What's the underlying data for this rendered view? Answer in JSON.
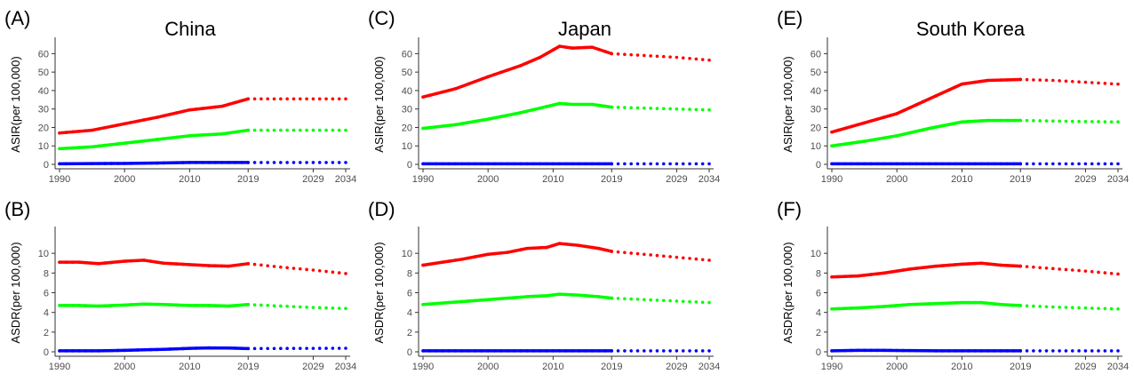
{
  "colors": {
    "red": "#ff0000",
    "green": "#00ff00",
    "blue": "#0000ff",
    "axis": "#333333",
    "tick_text": "#4d4d4d"
  },
  "x_ticks": [
    1990,
    2000,
    2010,
    2019,
    2029,
    2034
  ],
  "x_range": [
    1990,
    2034
  ],
  "observed_end": 2019,
  "chart_data": [
    {
      "type": "line",
      "panel": "(A)",
      "title": "China",
      "ylabel": "ASIR(per 100,000)",
      "ylim": [
        0,
        65
      ],
      "yticks": [
        0,
        10,
        20,
        30,
        40,
        50,
        60
      ],
      "x_observed": [
        1990,
        1995,
        2000,
        2005,
        2010,
        2015,
        2019
      ],
      "x_projected": [
        2019,
        2024,
        2029,
        2034
      ],
      "series": [
        {
          "color": "red",
          "observed": [
            17,
            18.5,
            22,
            25.5,
            29.5,
            31.5,
            35.5
          ],
          "projected": [
            35.5,
            35.5,
            35.5,
            35.5
          ]
        },
        {
          "color": "green",
          "observed": [
            8.5,
            9.5,
            11.5,
            13.5,
            15.5,
            16.5,
            18.5
          ],
          "projected": [
            18.5,
            18.5,
            18.5,
            18.5
          ]
        },
        {
          "color": "blue",
          "observed": [
            0.3,
            0.4,
            0.5,
            0.7,
            1.0,
            1.0,
            1.0
          ],
          "projected": [
            1.0,
            1.0,
            1.0,
            1.0
          ]
        }
      ]
    },
    {
      "type": "line",
      "panel": "(C)",
      "title": "Japan",
      "ylabel": "ASIR(per 100,000)",
      "ylim": [
        0,
        65
      ],
      "yticks": [
        0,
        10,
        20,
        30,
        40,
        50,
        60
      ],
      "x_observed": [
        1990,
        1995,
        2000,
        2005,
        2008,
        2011,
        2013,
        2016,
        2019
      ],
      "x_projected": [
        2019,
        2024,
        2029,
        2034
      ],
      "series": [
        {
          "color": "red",
          "observed": [
            36.5,
            41,
            47.5,
            53.5,
            58,
            64,
            63,
            63.5,
            60
          ],
          "projected": [
            60,
            59,
            58,
            56.5
          ]
        },
        {
          "color": "green",
          "observed": [
            19.5,
            21.5,
            24.5,
            28,
            30.5,
            33,
            32.5,
            32.5,
            31
          ],
          "projected": [
            31,
            30.5,
            30,
            29.5
          ]
        },
        {
          "color": "blue",
          "observed": [
            0.3,
            0.3,
            0.3,
            0.3,
            0.3,
            0.3,
            0.3,
            0.3,
            0.3
          ],
          "projected": [
            0.3,
            0.3,
            0.3,
            0.3
          ]
        }
      ]
    },
    {
      "type": "line",
      "panel": "(E)",
      "title": "South Korea",
      "ylabel": "ASIR(per 100,000)",
      "ylim": [
        0,
        65
      ],
      "yticks": [
        0,
        10,
        20,
        30,
        40,
        50,
        60
      ],
      "x_observed": [
        1990,
        1995,
        2000,
        2005,
        2010,
        2014,
        2019
      ],
      "x_projected": [
        2019,
        2024,
        2029,
        2034
      ],
      "series": [
        {
          "color": "red",
          "observed": [
            17.5,
            22.5,
            27.5,
            35.5,
            43.5,
            45.5,
            46
          ],
          "projected": [
            46,
            45.5,
            44.5,
            43.5
          ]
        },
        {
          "color": "green",
          "observed": [
            10,
            12.5,
            15.5,
            19.5,
            23,
            23.8,
            23.8
          ],
          "projected": [
            23.8,
            23.5,
            23.2,
            23
          ]
        },
        {
          "color": "blue",
          "observed": [
            0.3,
            0.3,
            0.3,
            0.3,
            0.3,
            0.3,
            0.3
          ],
          "projected": [
            0.3,
            0.3,
            0.3,
            0.3
          ]
        }
      ]
    },
    {
      "type": "line",
      "panel": "(B)",
      "title": "",
      "ylabel": "ASDR(per 100,000)",
      "ylim": [
        0,
        12
      ],
      "yticks": [
        0,
        2,
        4,
        6,
        8,
        10
      ],
      "x_observed": [
        1990,
        1993,
        1996,
        2000,
        2003,
        2006,
        2010,
        2013,
        2016,
        2019
      ],
      "x_projected": [
        2019,
        2024,
        2029,
        2034
      ],
      "series": [
        {
          "color": "red",
          "observed": [
            9.1,
            9.1,
            8.95,
            9.2,
            9.3,
            9.0,
            8.85,
            8.75,
            8.7,
            8.95
          ],
          "projected": [
            8.95,
            8.6,
            8.3,
            7.95
          ]
        },
        {
          "color": "green",
          "observed": [
            4.7,
            4.7,
            4.65,
            4.75,
            4.85,
            4.8,
            4.7,
            4.7,
            4.65,
            4.8
          ],
          "projected": [
            4.8,
            4.65,
            4.5,
            4.4
          ]
        },
        {
          "color": "blue",
          "observed": [
            0.1,
            0.1,
            0.1,
            0.15,
            0.2,
            0.25,
            0.35,
            0.4,
            0.38,
            0.33
          ],
          "projected": [
            0.33,
            0.34,
            0.35,
            0.36
          ]
        }
      ]
    },
    {
      "type": "line",
      "panel": "(D)",
      "title": "",
      "ylabel": "ASDR(per 100,000)",
      "ylim": [
        0,
        12
      ],
      "yticks": [
        0,
        2,
        4,
        6,
        8,
        10
      ],
      "x_observed": [
        1990,
        1993,
        1996,
        2000,
        2003,
        2006,
        2009,
        2011,
        2014,
        2017,
        2019
      ],
      "x_projected": [
        2019,
        2024,
        2029,
        2034
      ],
      "series": [
        {
          "color": "red",
          "observed": [
            8.8,
            9.1,
            9.4,
            9.9,
            10.1,
            10.5,
            10.6,
            11.0,
            10.8,
            10.5,
            10.2
          ],
          "projected": [
            10.2,
            9.9,
            9.6,
            9.3
          ]
        },
        {
          "color": "green",
          "observed": [
            4.8,
            4.95,
            5.1,
            5.3,
            5.45,
            5.6,
            5.7,
            5.85,
            5.75,
            5.6,
            5.45
          ],
          "projected": [
            5.45,
            5.3,
            5.15,
            5.0
          ]
        },
        {
          "color": "blue",
          "observed": [
            0.1,
            0.1,
            0.1,
            0.1,
            0.1,
            0.1,
            0.1,
            0.1,
            0.1,
            0.1,
            0.1
          ],
          "projected": [
            0.1,
            0.1,
            0.1,
            0.1
          ]
        }
      ]
    },
    {
      "type": "line",
      "panel": "(F)",
      "title": "",
      "ylabel": "ASDR(per 100,000)",
      "ylim": [
        0,
        12
      ],
      "yticks": [
        0,
        2,
        4,
        6,
        8,
        10
      ],
      "x_observed": [
        1990,
        1994,
        1998,
        2002,
        2006,
        2010,
        2013,
        2016,
        2019
      ],
      "x_projected": [
        2019,
        2024,
        2029,
        2034
      ],
      "series": [
        {
          "color": "red",
          "observed": [
            7.6,
            7.7,
            8.0,
            8.4,
            8.7,
            8.9,
            9.0,
            8.8,
            8.7
          ],
          "projected": [
            8.7,
            8.45,
            8.2,
            7.9
          ]
        },
        {
          "color": "green",
          "observed": [
            4.35,
            4.45,
            4.6,
            4.8,
            4.9,
            5.0,
            5.0,
            4.8,
            4.7
          ],
          "projected": [
            4.7,
            4.55,
            4.45,
            4.35
          ]
        },
        {
          "color": "blue",
          "observed": [
            0.1,
            0.15,
            0.15,
            0.12,
            0.1,
            0.1,
            0.1,
            0.1,
            0.1
          ],
          "projected": [
            0.1,
            0.1,
            0.1,
            0.1
          ]
        }
      ]
    }
  ]
}
